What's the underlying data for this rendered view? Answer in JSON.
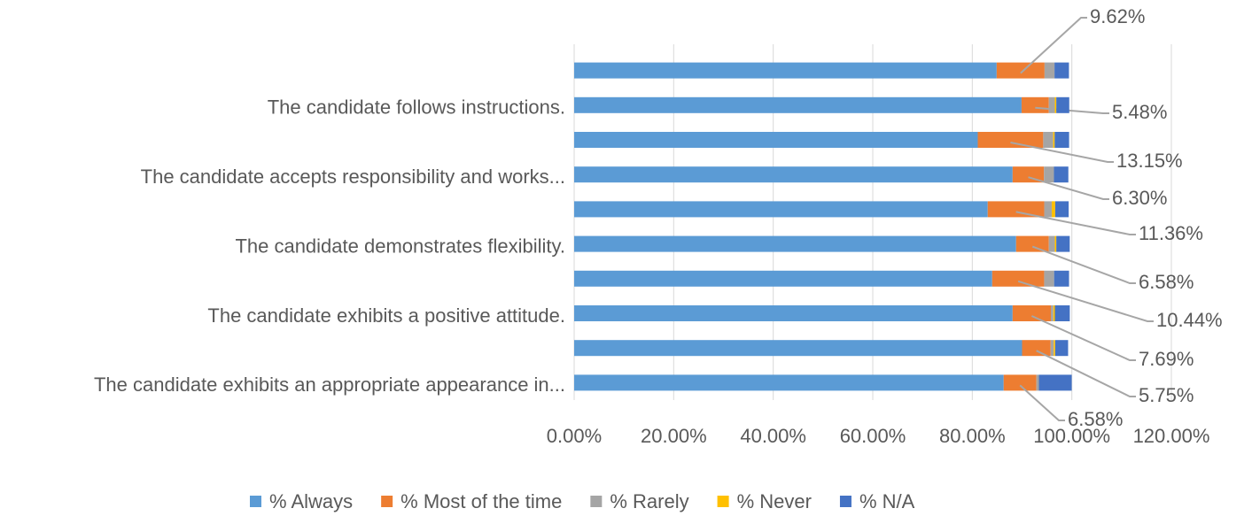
{
  "chart_data": {
    "type": "stacked-barh",
    "categories": [
      "The candidate exhibits an appropriate appearance in...",
      null,
      "The candidate exhibits a positive attitude.",
      null,
      "The candidate demonstrates flexibility.",
      null,
      "The candidate accepts responsibility and works...",
      null,
      "The candidate follows instructions.",
      null
    ],
    "series": [
      {
        "name": "% Always",
        "color": "#5b9bd5",
        "values": [
          86.3,
          90.0,
          88.1,
          84.0,
          88.8,
          83.1,
          88.1,
          81.1,
          89.9,
          84.9
        ]
      },
      {
        "name": "% Most of the time",
        "color": "#ed7d31",
        "values": [
          6.58,
          5.75,
          7.69,
          10.44,
          6.58,
          11.36,
          6.3,
          13.15,
          5.48,
          9.62
        ],
        "value_labels": [
          "6.58%",
          "5.75%",
          "7.69%",
          "10.44%",
          "6.58%",
          "11.36%",
          "6.30%",
          "13.15%",
          "5.48%",
          "9.62%"
        ]
      },
      {
        "name": "% Rarely",
        "color": "#a5a5a5",
        "values": [
          0.5,
          0.6,
          0.5,
          2.0,
          1.2,
          1.5,
          2.0,
          2.0,
          1.2,
          2.0
        ]
      },
      {
        "name": "% Never",
        "color": "#ffc000",
        "values": [
          0,
          0.3,
          0.3,
          0,
          0.3,
          0.7,
          0,
          0.3,
          0.3,
          0
        ]
      },
      {
        "name": "% N/A",
        "color": "#4472c4",
        "values": [
          6.6,
          2.6,
          3.0,
          3.0,
          2.7,
          2.7,
          2.9,
          2.9,
          2.6,
          2.9
        ]
      }
    ],
    "xlim": [
      0,
      120
    ],
    "xticks": [
      {
        "value": 0,
        "label": "0.00%"
      },
      {
        "value": 20,
        "label": "20.00%"
      },
      {
        "value": 40,
        "label": "40.00%"
      },
      {
        "value": 60,
        "label": "60.00%"
      },
      {
        "value": 80,
        "label": "80.00%"
      },
      {
        "value": 100,
        "label": "100.00%"
      },
      {
        "value": 120,
        "label": "120.00%"
      }
    ],
    "grid": true,
    "legend": "bottom"
  }
}
